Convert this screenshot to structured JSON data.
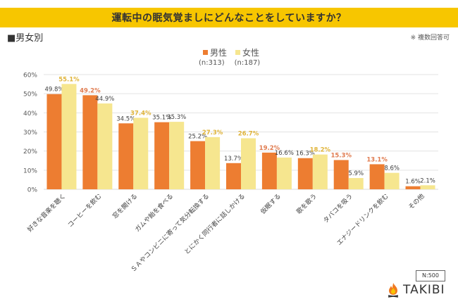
{
  "header": {
    "title": "運転中の眠気覚ましにどんなことをしていますか？",
    "subtitle": "■男女別",
    "note": "※ 複数回答可"
  },
  "legend": [
    {
      "label": "男性",
      "n": "(n:313)",
      "color": "#ed7d31"
    },
    {
      "label": "女性",
      "n": "(n:187)",
      "color": "#f6e68f"
    }
  ],
  "footer": {
    "sample": "N:500",
    "brand": "TAKIBI"
  },
  "chart_data": {
    "type": "bar",
    "title": "運転中の眠気覚ましにどんなことをしていますか？",
    "xlabel": "",
    "ylabel": "",
    "ylim": [
      0,
      60
    ],
    "yticks": [
      "0%",
      "10%",
      "20%",
      "30%",
      "40%",
      "50%",
      "60%"
    ],
    "grid": true,
    "legend_position": "top-center",
    "categories": [
      "好きな音楽を聴く",
      "コーヒーを飲む",
      "窓を開ける",
      "ガムや飴を食べる",
      "ＳＡやコンビニに寄って気分転換する",
      "とにかく同行者に話しかける",
      "仮眠する",
      "歌を歌う",
      "タバコを吸う",
      "エナジードリンクを飲む",
      "その他"
    ],
    "series": [
      {
        "name": "男性",
        "n": 313,
        "color": "#ed7d31",
        "values": [
          49.8,
          49.2,
          34.5,
          35.1,
          25.2,
          13.7,
          19.2,
          16.3,
          15.3,
          13.1,
          1.6
        ],
        "highlight": [
          false,
          true,
          false,
          false,
          false,
          false,
          true,
          false,
          true,
          true,
          false
        ]
      },
      {
        "name": "女性",
        "n": 187,
        "color": "#f6e68f",
        "values": [
          55.1,
          44.9,
          37.4,
          35.3,
          27.3,
          26.7,
          16.6,
          18.2,
          5.9,
          8.6,
          2.1
        ],
        "highlight": [
          true,
          false,
          true,
          false,
          true,
          true,
          false,
          true,
          false,
          false,
          false
        ]
      }
    ],
    "highlight_colors": {
      "男性": "#e07b4f",
      "女性": "#e0b43a"
    },
    "label_color": "#404040"
  }
}
